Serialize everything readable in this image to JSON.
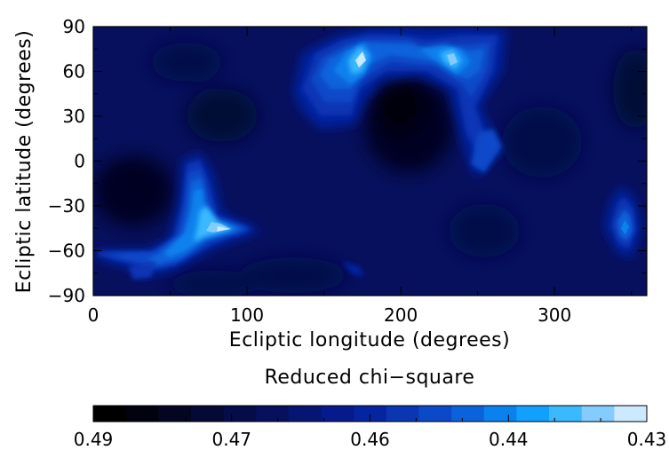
{
  "chart_data": {
    "type": "heatmap",
    "xlabel": "Ecliptic longitude (degrees)",
    "ylabel": "Ecliptic latitude (degrees)",
    "xlim": [
      0,
      360
    ],
    "ylim": [
      -90,
      90
    ],
    "x_ticks": [
      "0",
      "100",
      "200",
      "300"
    ],
    "y_ticks": [
      "90",
      "60",
      "30",
      "0",
      "−30",
      "−60",
      "−90"
    ],
    "colorbar": {
      "title": "Reduced chi−square",
      "tick_labels": [
        "0.49",
        "0.47",
        "0.46",
        "0.44",
        "0.43"
      ],
      "tick_values": [
        0.49,
        0.47,
        0.46,
        0.44,
        0.43
      ],
      "range": [
        0.49,
        0.43
      ],
      "levels": [
        "#000000",
        "#02020f",
        "#030521",
        "#040936",
        "#050c4a",
        "#06105d",
        "#071572",
        "#061a8c",
        "#0524a0",
        "#0a36b4",
        "#0a4ac8",
        "#0b63dc",
        "#0a82ee",
        "#12a0ff",
        "#3ab9ff",
        "#84cbff",
        "#cde9ff"
      ]
    },
    "background_value": 0.462,
    "features": [
      {
        "label": "bright-arc-north",
        "lon": [
          135,
          270
        ],
        "lat": [
          25,
          90
        ],
        "min_value": 0.432
      },
      {
        "label": "bright-lobe-south",
        "lon": [
          0,
          110
        ],
        "lat": [
          -80,
          0
        ],
        "min_value": 0.431
      },
      {
        "label": "bright-spot-east",
        "lon": [
          330,
          355
        ],
        "lat": [
          -65,
          -15
        ],
        "min_value": 0.445
      },
      {
        "label": "dark-region-center",
        "lon": [
          180,
          240
        ],
        "lat": [
          0,
          55
        ],
        "max_value": 0.482
      },
      {
        "label": "dark-region-west",
        "lon": [
          0,
          60
        ],
        "lat": [
          -50,
          0
        ],
        "max_value": 0.484
      }
    ]
  }
}
